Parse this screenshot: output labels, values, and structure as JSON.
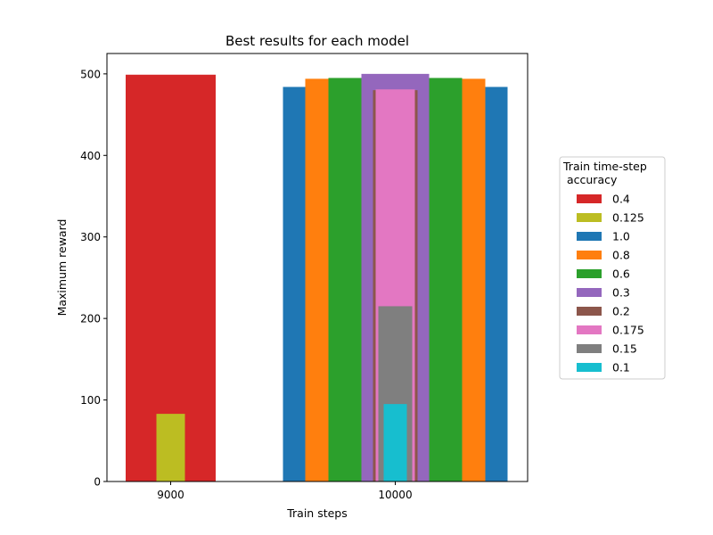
{
  "chart_data": {
    "type": "bar",
    "title": "Best results for each model",
    "xlabel": "Train steps",
    "ylabel": "Maximum reward",
    "ylim": [
      0,
      525
    ],
    "yticks": [
      0,
      100,
      200,
      300,
      400,
      500
    ],
    "xticks": [
      "9000",
      "10000"
    ],
    "legend": {
      "title_lines": [
        "Train time-step",
        " accuracy"
      ],
      "placement": "right"
    },
    "series": [
      {
        "name": "0.4",
        "color": "#d62728",
        "bars": [
          {
            "x": "9000",
            "value": 499
          }
        ]
      },
      {
        "name": "0.125",
        "color": "#bcbd22",
        "bars": [
          {
            "x": "9000",
            "value": 83
          }
        ]
      },
      {
        "name": "1.0",
        "color": "#1f77b4",
        "bars": [
          {
            "x": "10000",
            "value": 484
          }
        ]
      },
      {
        "name": "0.8",
        "color": "#ff7f0e",
        "bars": [
          {
            "x": "10000",
            "value": 494
          }
        ]
      },
      {
        "name": "0.6",
        "color": "#2ca02c",
        "bars": [
          {
            "x": "10000",
            "value": 495
          }
        ]
      },
      {
        "name": "0.3",
        "color": "#9467bd",
        "bars": [
          {
            "x": "10000",
            "value": 500
          }
        ]
      },
      {
        "name": "0.2",
        "color": "#8c564b",
        "bars": [
          {
            "x": "10000",
            "value": 480
          }
        ]
      },
      {
        "name": "0.175",
        "color": "#e377c2",
        "bars": [
          {
            "x": "10000",
            "value": 481
          }
        ]
      },
      {
        "name": "0.15",
        "color": "#7f7f7f",
        "bars": [
          {
            "x": "10000",
            "value": 215
          }
        ]
      },
      {
        "name": "0.1",
        "color": "#17becf",
        "bars": [
          {
            "x": "10000",
            "value": 95
          }
        ]
      }
    ]
  }
}
